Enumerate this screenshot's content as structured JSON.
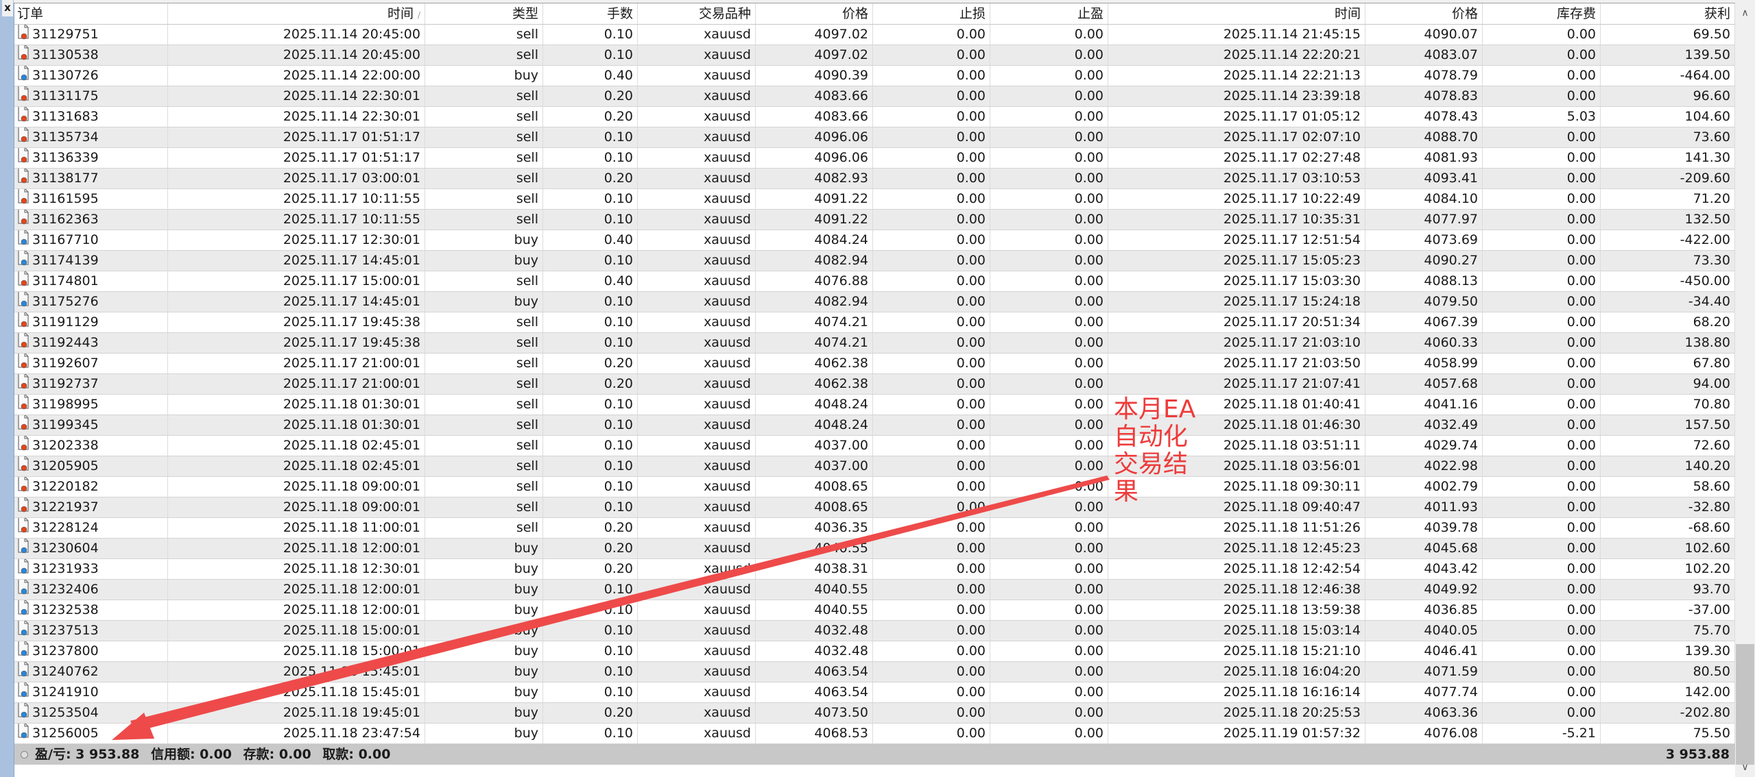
{
  "columns": [
    "订单",
    "时间",
    "类型",
    "手数",
    "交易品种",
    "价格",
    "止损",
    "止盈",
    "时间",
    "价格",
    "库存费",
    "获利"
  ],
  "close_label": "x",
  "colors": {
    "sell_dot": "#e2461b",
    "buy_dot": "#2a86d8",
    "annotation": "#ee3b3b",
    "footer_bg": "#c8c8c8"
  },
  "rows": [
    [
      "31129751",
      "2025.11.14 20:45:00",
      "sell",
      "0.10",
      "xauusd",
      "4097.02",
      "0.00",
      "0.00",
      "2025.11.14 21:45:15",
      "4090.07",
      "0.00",
      "69.50"
    ],
    [
      "31130538",
      "2025.11.14 20:45:00",
      "sell",
      "0.10",
      "xauusd",
      "4097.02",
      "0.00",
      "0.00",
      "2025.11.14 22:20:21",
      "4083.07",
      "0.00",
      "139.50"
    ],
    [
      "31130726",
      "2025.11.14 22:00:00",
      "buy",
      "0.40",
      "xauusd",
      "4090.39",
      "0.00",
      "0.00",
      "2025.11.14 22:21:13",
      "4078.79",
      "0.00",
      "-464.00"
    ],
    [
      "31131175",
      "2025.11.14 22:30:01",
      "sell",
      "0.20",
      "xauusd",
      "4083.66",
      "0.00",
      "0.00",
      "2025.11.14 23:39:18",
      "4078.83",
      "0.00",
      "96.60"
    ],
    [
      "31131683",
      "2025.11.14 22:30:01",
      "sell",
      "0.20",
      "xauusd",
      "4083.66",
      "0.00",
      "0.00",
      "2025.11.17 01:05:12",
      "4078.43",
      "5.03",
      "104.60"
    ],
    [
      "31135734",
      "2025.11.17 01:51:17",
      "sell",
      "0.10",
      "xauusd",
      "4096.06",
      "0.00",
      "0.00",
      "2025.11.17 02:07:10",
      "4088.70",
      "0.00",
      "73.60"
    ],
    [
      "31136339",
      "2025.11.17 01:51:17",
      "sell",
      "0.10",
      "xauusd",
      "4096.06",
      "0.00",
      "0.00",
      "2025.11.17 02:27:48",
      "4081.93",
      "0.00",
      "141.30"
    ],
    [
      "31138177",
      "2025.11.17 03:00:01",
      "sell",
      "0.20",
      "xauusd",
      "4082.93",
      "0.00",
      "0.00",
      "2025.11.17 03:10:53",
      "4093.41",
      "0.00",
      "-209.60"
    ],
    [
      "31161595",
      "2025.11.17 10:11:55",
      "sell",
      "0.10",
      "xauusd",
      "4091.22",
      "0.00",
      "0.00",
      "2025.11.17 10:22:49",
      "4084.10",
      "0.00",
      "71.20"
    ],
    [
      "31162363",
      "2025.11.17 10:11:55",
      "sell",
      "0.10",
      "xauusd",
      "4091.22",
      "0.00",
      "0.00",
      "2025.11.17 10:35:31",
      "4077.97",
      "0.00",
      "132.50"
    ],
    [
      "31167710",
      "2025.11.17 12:30:01",
      "buy",
      "0.40",
      "xauusd",
      "4084.24",
      "0.00",
      "0.00",
      "2025.11.17 12:51:54",
      "4073.69",
      "0.00",
      "-422.00"
    ],
    [
      "31174139",
      "2025.11.17 14:45:01",
      "buy",
      "0.10",
      "xauusd",
      "4082.94",
      "0.00",
      "0.00",
      "2025.11.17 15:05:23",
      "4090.27",
      "0.00",
      "73.30"
    ],
    [
      "31174801",
      "2025.11.17 15:00:01",
      "sell",
      "0.40",
      "xauusd",
      "4076.88",
      "0.00",
      "0.00",
      "2025.11.17 15:03:30",
      "4088.13",
      "0.00",
      "-450.00"
    ],
    [
      "31175276",
      "2025.11.17 14:45:01",
      "buy",
      "0.10",
      "xauusd",
      "4082.94",
      "0.00",
      "0.00",
      "2025.11.17 15:24:18",
      "4079.50",
      "0.00",
      "-34.40"
    ],
    [
      "31191129",
      "2025.11.17 19:45:38",
      "sell",
      "0.10",
      "xauusd",
      "4074.21",
      "0.00",
      "0.00",
      "2025.11.17 20:51:34",
      "4067.39",
      "0.00",
      "68.20"
    ],
    [
      "31192443",
      "2025.11.17 19:45:38",
      "sell",
      "0.10",
      "xauusd",
      "4074.21",
      "0.00",
      "0.00",
      "2025.11.17 21:03:10",
      "4060.33",
      "0.00",
      "138.80"
    ],
    [
      "31192607",
      "2025.11.17 21:00:01",
      "sell",
      "0.20",
      "xauusd",
      "4062.38",
      "0.00",
      "0.00",
      "2025.11.17 21:03:50",
      "4058.99",
      "0.00",
      "67.80"
    ],
    [
      "31192737",
      "2025.11.17 21:00:01",
      "sell",
      "0.20",
      "xauusd",
      "4062.38",
      "0.00",
      "0.00",
      "2025.11.17 21:07:41",
      "4057.68",
      "0.00",
      "94.00"
    ],
    [
      "31198995",
      "2025.11.18 01:30:01",
      "sell",
      "0.10",
      "xauusd",
      "4048.24",
      "0.00",
      "0.00",
      "2025.11.18 01:40:41",
      "4041.16",
      "0.00",
      "70.80"
    ],
    [
      "31199345",
      "2025.11.18 01:30:01",
      "sell",
      "0.10",
      "xauusd",
      "4048.24",
      "0.00",
      "0.00",
      "2025.11.18 01:46:30",
      "4032.49",
      "0.00",
      "157.50"
    ],
    [
      "31202338",
      "2025.11.18 02:45:01",
      "sell",
      "0.10",
      "xauusd",
      "4037.00",
      "0.00",
      "0.00",
      "2025.11.18 03:51:11",
      "4029.74",
      "0.00",
      "72.60"
    ],
    [
      "31205905",
      "2025.11.18 02:45:01",
      "sell",
      "0.10",
      "xauusd",
      "4037.00",
      "0.00",
      "0.00",
      "2025.11.18 03:56:01",
      "4022.98",
      "0.00",
      "140.20"
    ],
    [
      "31220182",
      "2025.11.18 09:00:01",
      "sell",
      "0.10",
      "xauusd",
      "4008.65",
      "0.00",
      "0.00",
      "2025.11.18 09:30:11",
      "4002.79",
      "0.00",
      "58.60"
    ],
    [
      "31221937",
      "2025.11.18 09:00:01",
      "sell",
      "0.10",
      "xauusd",
      "4008.65",
      "0.00",
      "0.00",
      "2025.11.18 09:40:47",
      "4011.93",
      "0.00",
      "-32.80"
    ],
    [
      "31228124",
      "2025.11.18 11:00:01",
      "sell",
      "0.20",
      "xauusd",
      "4036.35",
      "0.00",
      "0.00",
      "2025.11.18 11:51:26",
      "4039.78",
      "0.00",
      "-68.60"
    ],
    [
      "31230604",
      "2025.11.18 12:00:01",
      "buy",
      "0.20",
      "xauusd",
      "4040.55",
      "0.00",
      "0.00",
      "2025.11.18 12:45:23",
      "4045.68",
      "0.00",
      "102.60"
    ],
    [
      "31231933",
      "2025.11.18 12:30:01",
      "buy",
      "0.20",
      "xauusd",
      "4038.31",
      "0.00",
      "0.00",
      "2025.11.18 12:42:54",
      "4043.42",
      "0.00",
      "102.20"
    ],
    [
      "31232406",
      "2025.11.18 12:00:01",
      "buy",
      "0.10",
      "xauusd",
      "4040.55",
      "0.00",
      "0.00",
      "2025.11.18 12:46:38",
      "4049.92",
      "0.00",
      "93.70"
    ],
    [
      "31232538",
      "2025.11.18 12:00:01",
      "buy",
      "0.10",
      "xauusd",
      "4040.55",
      "0.00",
      "0.00",
      "2025.11.18 13:59:38",
      "4036.85",
      "0.00",
      "-37.00"
    ],
    [
      "31237513",
      "2025.11.18 15:00:01",
      "buy",
      "0.10",
      "xauusd",
      "4032.48",
      "0.00",
      "0.00",
      "2025.11.18 15:03:14",
      "4040.05",
      "0.00",
      "75.70"
    ],
    [
      "31237800",
      "2025.11.18 15:00:01",
      "buy",
      "0.10",
      "xauusd",
      "4032.48",
      "0.00",
      "0.00",
      "2025.11.18 15:21:10",
      "4046.41",
      "0.00",
      "139.30"
    ],
    [
      "31240762",
      "2025.11.18 15:45:01",
      "buy",
      "0.10",
      "xauusd",
      "4063.54",
      "0.00",
      "0.00",
      "2025.11.18 16:04:20",
      "4071.59",
      "0.00",
      "80.50"
    ],
    [
      "31241910",
      "2025.11.18 15:45:01",
      "buy",
      "0.10",
      "xauusd",
      "4063.54",
      "0.00",
      "0.00",
      "2025.11.18 16:16:14",
      "4077.74",
      "0.00",
      "142.00"
    ],
    [
      "31253504",
      "2025.11.18 19:45:01",
      "buy",
      "0.20",
      "xauusd",
      "4073.50",
      "0.00",
      "0.00",
      "2025.11.18 20:25:53",
      "4063.36",
      "0.00",
      "-202.80"
    ],
    [
      "31256005",
      "2025.11.18 23:47:54",
      "buy",
      "0.10",
      "xauusd",
      "4068.53",
      "0.00",
      "0.00",
      "2025.11.19 01:57:32",
      "4076.08",
      "-5.21",
      "75.50"
    ]
  ],
  "footer": {
    "pl": "盈/亏: 3 953.88",
    "credit": "信用额: 0.00",
    "deposit": "存款: 0.00",
    "withdrawal": "取款: 0.00",
    "total": "3 953.88"
  },
  "annotation": "本月EA自动化交易结果"
}
